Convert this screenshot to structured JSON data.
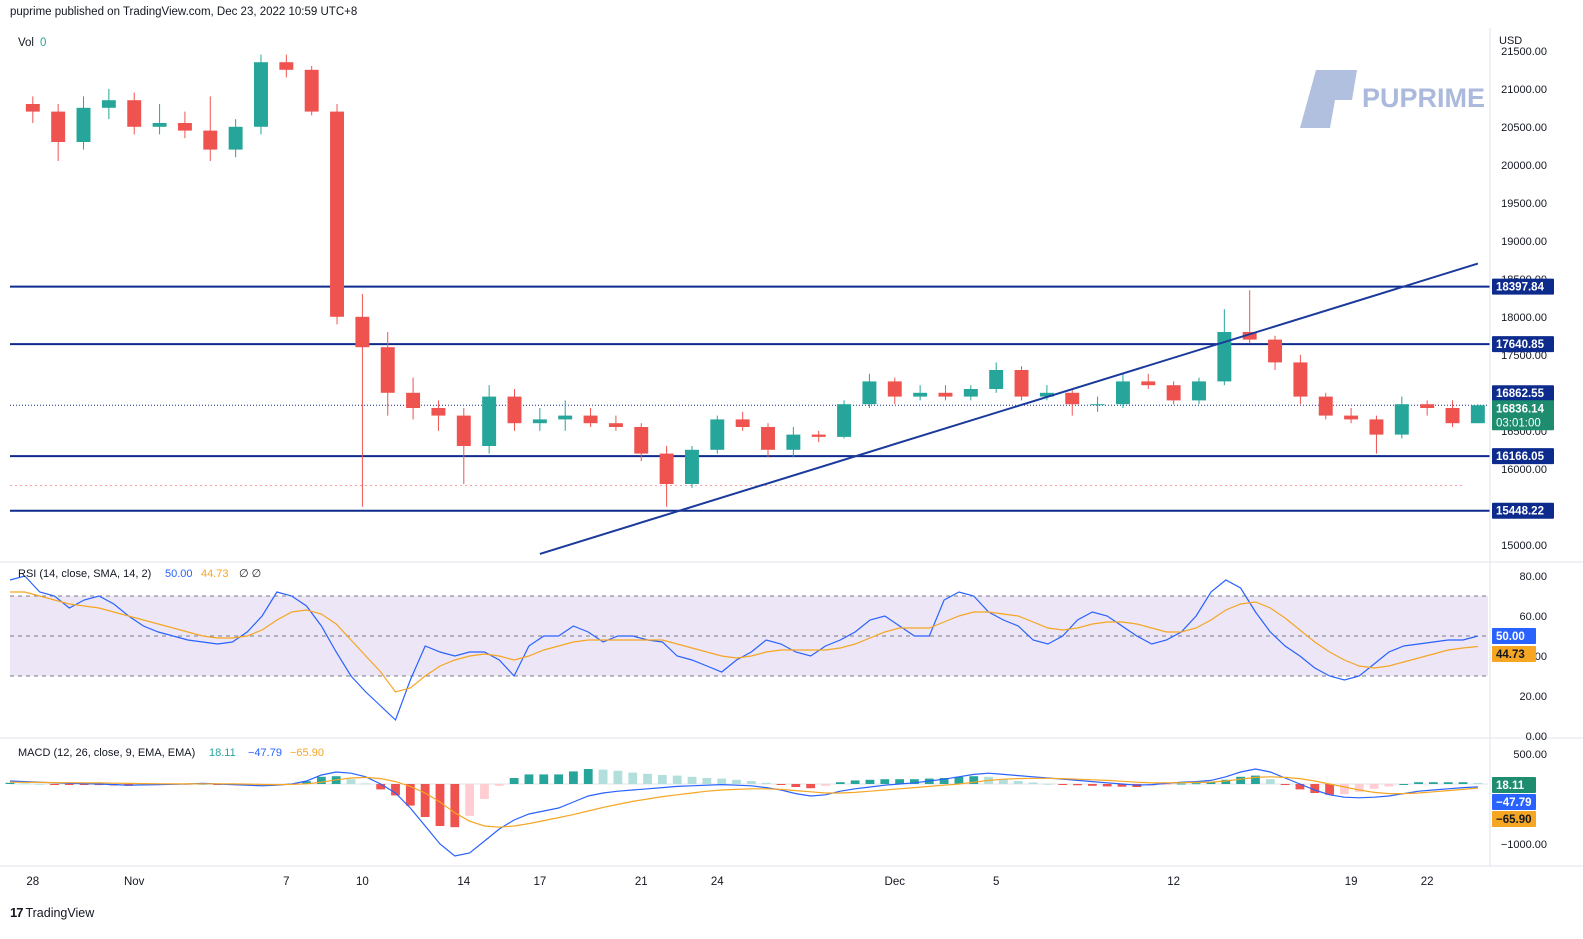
{
  "header": {
    "published_text": "puprime published on TradingView.com, Dec 23, 2022 10:59 UTC+8"
  },
  "footer": {
    "tv_logo": "17",
    "brand": "TradingView"
  },
  "watermark": {
    "text": "PUPRIME",
    "color": "#aab9dc"
  },
  "colors": {
    "up": "#26a69a",
    "down": "#ef5350",
    "hline": "#0d2b8c",
    "trend": "#1a3a9c",
    "rsi": "#2962ff",
    "rsi_ma": "#f5a623",
    "rsi_band": "#ece6f7",
    "macd": "#2962ff",
    "signal": "#f5a623"
  },
  "chart_data": [
    {
      "type": "candlestick",
      "title": "",
      "volume_label": "Vol",
      "volume_value": "0",
      "currency": "USD",
      "ylim": [
        14800,
        21800
      ],
      "y_ticks": [
        "15000.00",
        "15500.00",
        "16000.00",
        "16500.00",
        "17000.00",
        "17500.00",
        "18000.00",
        "18500.00",
        "19000.00",
        "19500.00",
        "20000.00",
        "20500.00",
        "21000.00",
        "21500.00"
      ],
      "x_ticks": [
        {
          "label": "28",
          "day": 0
        },
        {
          "label": "Nov",
          "day": 4
        },
        {
          "label": "7",
          "day": 10
        },
        {
          "label": "10",
          "day": 13
        },
        {
          "label": "14",
          "day": 17
        },
        {
          "label": "17",
          "day": 20
        },
        {
          "label": "21",
          "day": 24
        },
        {
          "label": "24",
          "day": 27
        },
        {
          "label": "Dec",
          "day": 34
        },
        {
          "label": "5",
          "day": 38
        },
        {
          "label": "12",
          "day": 45
        },
        {
          "label": "19",
          "day": 52
        },
        {
          "label": "22",
          "day": 55
        }
      ],
      "x_range": [
        -0.9,
        57.4
      ],
      "horizontal_levels": [
        {
          "value": 18397.84,
          "label": "18397.84"
        },
        {
          "value": 17640.85,
          "label": "17640.85"
        },
        {
          "value": 16166.05,
          "label": "16166.05"
        },
        {
          "value": 15448.22,
          "label": "15448.22"
        }
      ],
      "trendline": {
        "from": {
          "day": 20,
          "price": 14880
        },
        "to": {
          "day": 57,
          "price": 18700
        }
      },
      "last_price": {
        "value": 16836.14,
        "label": "16836.14",
        "countdown": "03:01:00"
      },
      "prev_close": {
        "value": 16862.55,
        "label": "16862.55"
      },
      "faint_level": 15780,
      "series_ohlc_daily": [
        {
          "day": 0,
          "open": 20800,
          "high": 20900,
          "low": 20550,
          "close": 20700
        },
        {
          "day": 1,
          "open": 20700,
          "high": 20800,
          "low": 20050,
          "close": 20300
        },
        {
          "day": 2,
          "open": 20300,
          "high": 20900,
          "low": 20200,
          "close": 20750
        },
        {
          "day": 3,
          "open": 20750,
          "high": 21000,
          "low": 20600,
          "close": 20850
        },
        {
          "day": 4,
          "open": 20850,
          "high": 20950,
          "low": 20400,
          "close": 20500
        },
        {
          "day": 5,
          "open": 20500,
          "high": 20800,
          "low": 20400,
          "close": 20550
        },
        {
          "day": 6,
          "open": 20550,
          "high": 20700,
          "low": 20350,
          "close": 20450
        },
        {
          "day": 7,
          "open": 20450,
          "high": 20900,
          "low": 20050,
          "close": 20200
        },
        {
          "day": 8,
          "open": 20200,
          "high": 20600,
          "low": 20100,
          "close": 20500
        },
        {
          "day": 9,
          "open": 20500,
          "high": 21450,
          "low": 20400,
          "close": 21350
        },
        {
          "day": 10,
          "open": 21350,
          "high": 21450,
          "low": 21150,
          "close": 21250
        },
        {
          "day": 11,
          "open": 21250,
          "high": 21300,
          "low": 20650,
          "close": 20700
        },
        {
          "day": 12,
          "open": 20700,
          "high": 20800,
          "low": 17900,
          "close": 18000
        },
        {
          "day": 13,
          "open": 18000,
          "high": 18300,
          "low": 15500,
          "close": 17600
        },
        {
          "day": 14,
          "open": 17600,
          "high": 17800,
          "low": 16700,
          "close": 17000
        },
        {
          "day": 15,
          "open": 17000,
          "high": 17200,
          "low": 16650,
          "close": 16800
        },
        {
          "day": 16,
          "open": 16800,
          "high": 16900,
          "low": 16500,
          "close": 16700
        },
        {
          "day": 17,
          "open": 16700,
          "high": 16800,
          "low": 15800,
          "close": 16300
        },
        {
          "day": 18,
          "open": 16300,
          "high": 17100,
          "low": 16200,
          "close": 16950
        },
        {
          "day": 19,
          "open": 16950,
          "high": 17050,
          "low": 16500,
          "close": 16600
        },
        {
          "day": 20,
          "open": 16600,
          "high": 16800,
          "low": 16500,
          "close": 16650
        },
        {
          "day": 21,
          "open": 16650,
          "high": 16900,
          "low": 16500,
          "close": 16700
        },
        {
          "day": 22,
          "open": 16700,
          "high": 16800,
          "low": 16550,
          "close": 16600
        },
        {
          "day": 23,
          "open": 16600,
          "high": 16700,
          "low": 16500,
          "close": 16550
        },
        {
          "day": 24,
          "open": 16550,
          "high": 16600,
          "low": 16100,
          "close": 16200
        },
        {
          "day": 25,
          "open": 16200,
          "high": 16300,
          "low": 15500,
          "close": 15800
        },
        {
          "day": 26,
          "open": 15800,
          "high": 16300,
          "low": 15750,
          "close": 16250
        },
        {
          "day": 27,
          "open": 16250,
          "high": 16700,
          "low": 16200,
          "close": 16650
        },
        {
          "day": 28,
          "open": 16650,
          "high": 16750,
          "low": 16500,
          "close": 16550
        },
        {
          "day": 29,
          "open": 16550,
          "high": 16600,
          "low": 16150,
          "close": 16250
        },
        {
          "day": 30,
          "open": 16250,
          "high": 16550,
          "low": 16150,
          "close": 16450
        },
        {
          "day": 31,
          "open": 16450,
          "high": 16500,
          "low": 16350,
          "close": 16420
        },
        {
          "day": 32,
          "open": 16420,
          "high": 16900,
          "low": 16400,
          "close": 16850
        },
        {
          "day": 33,
          "open": 16850,
          "high": 17250,
          "low": 16800,
          "close": 17150
        },
        {
          "day": 34,
          "open": 17150,
          "high": 17200,
          "low": 16850,
          "close": 16950
        },
        {
          "day": 35,
          "open": 16950,
          "high": 17100,
          "low": 16900,
          "close": 17000
        },
        {
          "day": 36,
          "open": 17000,
          "high": 17100,
          "low": 16900,
          "close": 16950
        },
        {
          "day": 37,
          "open": 16950,
          "high": 17100,
          "low": 16900,
          "close": 17050
        },
        {
          "day": 38,
          "open": 17050,
          "high": 17400,
          "low": 17000,
          "close": 17300
        },
        {
          "day": 39,
          "open": 17300,
          "high": 17350,
          "low": 16900,
          "close": 16950
        },
        {
          "day": 40,
          "open": 16950,
          "high": 17100,
          "low": 16900,
          "close": 17000
        },
        {
          "day": 41,
          "open": 17000,
          "high": 17050,
          "low": 16700,
          "close": 16850
        },
        {
          "day": 42,
          "open": 16850,
          "high": 16950,
          "low": 16750,
          "close": 16850
        },
        {
          "day": 43,
          "open": 16850,
          "high": 17250,
          "low": 16800,
          "close": 17150
        },
        {
          "day": 44,
          "open": 17150,
          "high": 17250,
          "low": 17050,
          "close": 17100
        },
        {
          "day": 45,
          "open": 17100,
          "high": 17150,
          "low": 16850,
          "close": 16900
        },
        {
          "day": 46,
          "open": 16900,
          "high": 17200,
          "low": 16850,
          "close": 17150
        },
        {
          "day": 47,
          "open": 17150,
          "high": 18100,
          "low": 17100,
          "close": 17800
        },
        {
          "day": 48,
          "open": 17800,
          "high": 18350,
          "low": 17650,
          "close": 17700
        },
        {
          "day": 49,
          "open": 17700,
          "high": 17750,
          "low": 17300,
          "close": 17400
        },
        {
          "day": 50,
          "open": 17400,
          "high": 17500,
          "low": 16850,
          "close": 16950
        },
        {
          "day": 51,
          "open": 16950,
          "high": 17000,
          "low": 16650,
          "close": 16700
        },
        {
          "day": 52,
          "open": 16700,
          "high": 16800,
          "low": 16600,
          "close": 16650
        },
        {
          "day": 53,
          "open": 16650,
          "high": 16700,
          "low": 16200,
          "close": 16450
        },
        {
          "day": 54,
          "open": 16450,
          "high": 16950,
          "low": 16400,
          "close": 16850
        },
        {
          "day": 55,
          "open": 16850,
          "high": 16900,
          "low": 16700,
          "close": 16800
        },
        {
          "day": 56,
          "open": 16800,
          "high": 16900,
          "low": 16550,
          "close": 16600
        },
        {
          "day": 57,
          "open": 16600,
          "high": 16850,
          "low": 16600,
          "close": 16836.14
        }
      ]
    },
    {
      "type": "line",
      "title": "RSI (14, close, SMA, 14, 2)",
      "legend_values": [
        "50.00",
        "44.73"
      ],
      "legend_tail": "∅ ∅",
      "ylim": [
        0,
        85
      ],
      "y_ticks": [
        "0.00",
        "20.00",
        "40.00",
        "60.00",
        "80.00"
      ],
      "band": [
        30,
        70
      ],
      "dashed_levels": [
        30,
        50,
        70
      ],
      "current": [
        {
          "label": "50.00"
        },
        {
          "label": "44.73"
        }
      ],
      "series": [
        {
          "values": [
            78,
            80,
            72,
            70,
            64,
            68,
            70,
            66,
            60,
            55,
            52,
            50,
            48,
            47,
            46,
            47,
            52,
            60,
            72,
            70,
            65,
            55,
            42,
            30,
            22,
            15,
            8,
            28,
            45,
            42,
            40,
            42,
            42,
            38,
            30,
            45,
            50,
            50,
            55,
            52,
            47,
            50,
            50,
            48,
            47,
            40,
            38,
            35,
            32,
            38,
            42,
            48,
            46,
            42,
            40,
            45,
            48,
            52,
            58,
            60,
            55,
            50,
            50,
            68,
            72,
            70,
            62,
            58,
            55,
            48,
            46,
            50,
            58,
            62,
            60,
            55,
            50,
            46,
            48,
            52,
            60,
            72,
            78,
            74,
            62,
            52,
            45,
            40,
            34,
            30,
            28,
            30,
            36,
            42,
            45,
            46,
            47,
            48,
            48,
            50
          ]
        },
        {
          "values": [
            72,
            72,
            70,
            68,
            66,
            65,
            64,
            62,
            60,
            58,
            56,
            54,
            52,
            50,
            49,
            49,
            50,
            53,
            58,
            62,
            63,
            61,
            56,
            48,
            40,
            32,
            22,
            24,
            30,
            35,
            38,
            40,
            41,
            40,
            38,
            40,
            43,
            45,
            47,
            48,
            48,
            48,
            48,
            48,
            48,
            46,
            44,
            42,
            40,
            39,
            40,
            42,
            43,
            43,
            43,
            43,
            44,
            46,
            49,
            52,
            54,
            54,
            54,
            57,
            60,
            62,
            62,
            61,
            60,
            57,
            54,
            53,
            54,
            56,
            57,
            57,
            56,
            54,
            52,
            52,
            54,
            58,
            63,
            66,
            67,
            64,
            59,
            53,
            47,
            42,
            38,
            35,
            34,
            35,
            37,
            39,
            41,
            43,
            44,
            44.73
          ]
        }
      ]
    },
    {
      "type": "line",
      "title": "MACD (12, 26, close, 9, EMA, EMA)",
      "legend_values": [
        "18.11",
        "−47.79",
        "−65.90"
      ],
      "ylim": [
        -1300,
        700
      ],
      "y_ticks": [
        "−1000.00",
        "500.00"
      ],
      "zero": 0,
      "current": [
        {
          "label": "18.11"
        },
        {
          "label": "−47.79"
        },
        {
          "label": "−65.90"
        }
      ],
      "series": [
        {
          "values": [
            50,
            40,
            30,
            20,
            10,
            5,
            0,
            -10,
            -20,
            -15,
            -10,
            -5,
            0,
            10,
            0,
            -10,
            -20,
            -30,
            -20,
            0,
            50,
            150,
            200,
            180,
            120,
            0,
            -150,
            -400,
            -700,
            -1000,
            -1200,
            -1150,
            -950,
            -750,
            -600,
            -500,
            -450,
            -400,
            -300,
            -200,
            -150,
            -120,
            -100,
            -80,
            -60,
            -40,
            -30,
            -20,
            -10,
            -20,
            -30,
            -60,
            -100,
            -160,
            -200,
            -180,
            -120,
            -80,
            -50,
            -20,
            0,
            20,
            50,
            80,
            120,
            160,
            180,
            160,
            140,
            120,
            100,
            80,
            60,
            40,
            20,
            0,
            -20,
            -10,
            10,
            30,
            40,
            60,
            120,
            200,
            250,
            200,
            100,
            0,
            -100,
            -180,
            -220,
            -230,
            -220,
            -200,
            -160,
            -120,
            -100,
            -80,
            -60,
            -47.79
          ]
        },
        {
          "values": [
            30,
            28,
            26,
            24,
            22,
            20,
            18,
            14,
            10,
            6,
            4,
            2,
            2,
            4,
            4,
            2,
            -2,
            -8,
            -10,
            -6,
            4,
            30,
            70,
            100,
            110,
            90,
            40,
            -40,
            -150,
            -300,
            -480,
            -620,
            -700,
            -720,
            -700,
            -660,
            -610,
            -560,
            -510,
            -450,
            -390,
            -340,
            -290,
            -250,
            -210,
            -180,
            -150,
            -120,
            -100,
            -90,
            -80,
            -80,
            -90,
            -110,
            -130,
            -150,
            -150,
            -140,
            -120,
            -100,
            -80,
            -60,
            -40,
            -20,
            0,
            30,
            60,
            80,
            90,
            95,
            95,
            90,
            80,
            70,
            60,
            45,
            30,
            20,
            20,
            22,
            26,
            32,
            50,
            80,
            110,
            120,
            110,
            90,
            50,
            0,
            -50,
            -100,
            -140,
            -160,
            -160,
            -150,
            -130,
            -110,
            -90,
            -65.9
          ]
        }
      ],
      "histogram_current": 18.11
    }
  ]
}
